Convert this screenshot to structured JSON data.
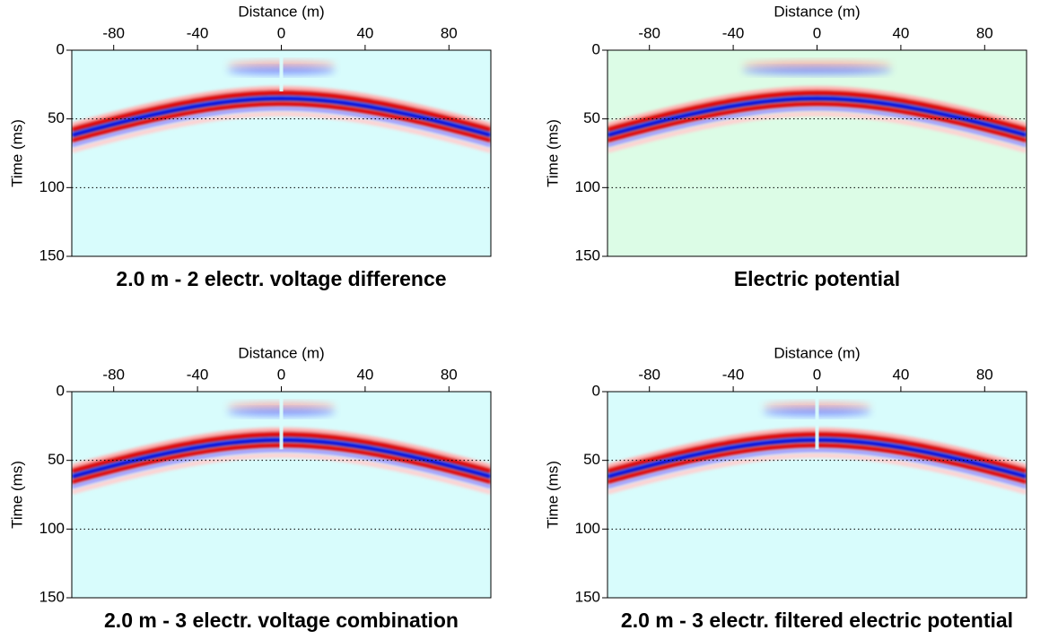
{
  "chart_data": [
    {
      "type": "section",
      "title": "2.0 m - 2 electr. voltage difference",
      "xlabel": "Distance (m)",
      "ylabel": "Time (ms)",
      "xlim": [
        -100,
        100
      ],
      "xticks": [
        -80,
        -40,
        0,
        40,
        80
      ],
      "ylim": [
        0,
        150
      ],
      "yticks": [
        0,
        50,
        100,
        150
      ],
      "grid": true,
      "background": "#d8fcfc"
    },
    {
      "type": "section",
      "title": "Electric potential",
      "xlabel": "Distance (m)",
      "ylabel": "Time (ms)",
      "xlim": [
        -100,
        100
      ],
      "xticks": [
        -80,
        -40,
        0,
        40,
        80
      ],
      "ylim": [
        0,
        150
      ],
      "yticks": [
        0,
        50,
        100,
        150
      ],
      "grid": true,
      "background": "#dcfce6"
    },
    {
      "type": "section",
      "title": "2.0 m - 3 electr. voltage combination",
      "xlabel": "Distance (m)",
      "ylabel": "Time (ms)",
      "xlim": [
        -100,
        100
      ],
      "xticks": [
        -80,
        -40,
        0,
        40,
        80
      ],
      "ylim": [
        0,
        150
      ],
      "yticks": [
        0,
        50,
        100,
        150
      ],
      "grid": true,
      "background": "#d8fcfc"
    },
    {
      "type": "section",
      "title": "2.0 m - 3 electr. filtered electric potential",
      "xlabel": "Distance (m)",
      "ylabel": "Time (ms)",
      "xlim": [
        -100,
        100
      ],
      "xticks": [
        -80,
        -40,
        0,
        40,
        80
      ],
      "ylim": [
        0,
        150
      ],
      "yticks": [
        0,
        50,
        100,
        150
      ],
      "grid": true,
      "background": "#d8fcfc"
    }
  ]
}
